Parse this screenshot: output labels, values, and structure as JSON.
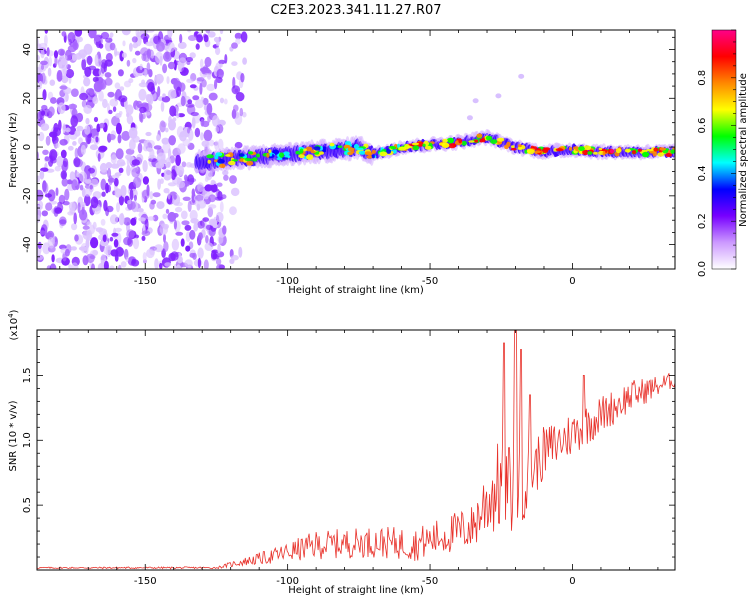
{
  "chart_data": [
    {
      "type": "heatmap",
      "title": "C2E3.2023.341.11.27.R07",
      "xlabel": "Height of straight line (km)",
      "ylabel": "Frequency (Hz)",
      "xlim": [
        -188,
        36
      ],
      "ylim": [
        -50,
        48
      ],
      "xticks": [
        "-150",
        "-100",
        "-50",
        "0"
      ],
      "yticks": [
        "-40",
        "-20",
        "0",
        "20",
        "40"
      ],
      "colorbar": {
        "label": "Normalized spectral amplitude",
        "range": [
          0,
          1
        ],
        "ticks": [
          "0.0",
          "0.2",
          "0.4",
          "0.6",
          "0.8"
        ],
        "colors": [
          "#ffffff",
          "#cc99ff",
          "#7700ff",
          "#0000ff",
          "#00ffff",
          "#00ff00",
          "#ffff00",
          "#ff8800",
          "#ff0000",
          "#ff0088"
        ]
      },
      "features": {
        "noise_region_x": [
          -188,
          -123
        ],
        "ridge": [
          [
            -132,
            -6
          ],
          [
            -120,
            -5
          ],
          [
            -100,
            -3
          ],
          [
            -80,
            -1
          ],
          [
            -75,
            0
          ],
          [
            -70,
            -3
          ],
          [
            -60,
            0
          ],
          [
            -50,
            1
          ],
          [
            -40,
            2
          ],
          [
            -30,
            4
          ],
          [
            -20,
            0
          ],
          [
            -10,
            -2
          ],
          [
            0,
            -1
          ],
          [
            10,
            -2
          ],
          [
            20,
            -2
          ],
          [
            36,
            -2
          ]
        ],
        "ridge_width_hz": 4
      }
    },
    {
      "type": "line",
      "xlabel": "Height of straight line (km)",
      "ylabel": "SNR (10 * v/v)",
      "y_exponent_label": "(x10",
      "y_exponent_power": "4",
      "y_exponent_close": ")",
      "xlim": [
        -188,
        36
      ],
      "ylim": [
        0,
        18500
      ],
      "xticks": [
        "-150",
        "-100",
        "-50",
        "0"
      ],
      "yticks": [
        "0.5",
        "1.0",
        "1.5"
      ],
      "series": [
        {
          "color": "#e8312a",
          "envelope": [
            {
              "x": -188,
              "base": 150,
              "spread": 120
            },
            {
              "x": -125,
              "base": 150,
              "spread": 150
            },
            {
              "x": -118,
              "base": 450,
              "spread": 500
            },
            {
              "x": -105,
              "base": 900,
              "spread": 1200
            },
            {
              "x": -90,
              "base": 1600,
              "spread": 2200
            },
            {
              "x": -70,
              "base": 1800,
              "spread": 2400
            },
            {
              "x": -55,
              "base": 1600,
              "spread": 2600
            },
            {
              "x": -45,
              "base": 2200,
              "spread": 3000
            },
            {
              "x": -35,
              "base": 2800,
              "spread": 3500
            },
            {
              "x": -30,
              "base": 4500,
              "spread": 6000
            },
            {
              "x": -25,
              "base": 5500,
              "spread": 7500
            },
            {
              "x": -20,
              "base": 5000,
              "spread": 7000
            },
            {
              "x": -15,
              "base": 6500,
              "spread": 5000
            },
            {
              "x": -10,
              "base": 8500,
              "spread": 4000
            },
            {
              "x": 0,
              "base": 10000,
              "spread": 3500
            },
            {
              "x": 10,
              "base": 11500,
              "spread": 3000
            },
            {
              "x": 20,
              "base": 13000,
              "spread": 2500
            },
            {
              "x": 36,
              "base": 14500,
              "spread": 1200
            }
          ],
          "peaks": [
            {
              "x": -24,
              "y": 17500
            },
            {
              "x": -20,
              "y": 18500
            },
            {
              "x": -18,
              "y": 17000
            },
            {
              "x": -15,
              "y": 13500
            },
            {
              "x": 4,
              "y": 15000
            }
          ]
        }
      ]
    }
  ]
}
